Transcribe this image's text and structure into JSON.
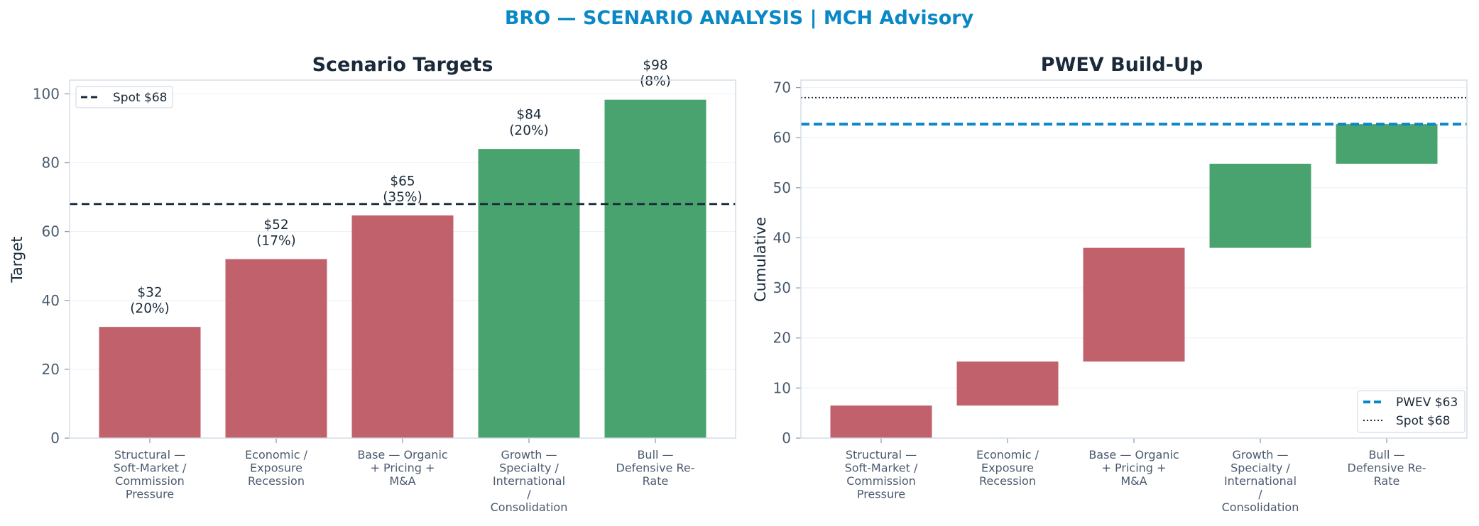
{
  "figure": {
    "title": "BRO — SCENARIO ANALYSIS | MCH Advisory"
  },
  "colors": {
    "bear": "#c0616b",
    "bull": "#49a36e",
    "spot_line": "#1a2a3a",
    "pwev_line": "#0a88c6",
    "title": "#0a88c6"
  },
  "chart_data": [
    {
      "type": "bar",
      "title": "Scenario Targets",
      "xlabel": "",
      "ylabel": "Target",
      "ylim": [
        0,
        104
      ],
      "yticks": [
        0,
        20,
        40,
        60,
        80,
        100
      ],
      "categories": [
        "Structural — Soft-Market / Commission Pressure",
        "Economic / Exposure Recession",
        "Base — Organic + Pricing + M&A",
        "Growth — Specialty / International / Consolidation",
        "Bull — Defensive Re-Rate"
      ],
      "category_lines": [
        [
          "Structural —",
          "Soft-Market /",
          "Commission",
          "Pressure"
        ],
        [
          "Economic /",
          "Exposure",
          "Recession"
        ],
        [
          "Base — Organic",
          "+ Pricing +",
          "M&A"
        ],
        [
          "Growth —",
          "Specialty /",
          "International",
          "/",
          "Consolidation"
        ],
        [
          "Bull —",
          "Defensive Re-",
          "Rate"
        ]
      ],
      "values": [
        32.3,
        52,
        64.7,
        84,
        98.3
      ],
      "bar_colors": [
        "bear",
        "bear",
        "bear",
        "bull",
        "bull"
      ],
      "data_labels": [
        [
          "$32",
          "(20%)"
        ],
        [
          "$52",
          "(17%)"
        ],
        [
          "$65",
          "(35%)"
        ],
        [
          "$84",
          "(20%)"
        ],
        [
          "$98",
          "(8%)"
        ]
      ],
      "reference_lines": [
        {
          "name": "Spot $68",
          "value": 68,
          "style": "dashed",
          "color": "spot_line"
        }
      ],
      "legend": {
        "position": "top-left",
        "entries": [
          "Spot $68"
        ]
      },
      "grid": true
    },
    {
      "type": "bar",
      "subtype": "waterfall",
      "title": "PWEV Build-Up",
      "xlabel": "",
      "ylabel": "Cumulative",
      "ylim": [
        0,
        71.5
      ],
      "yticks": [
        0,
        10,
        20,
        30,
        40,
        50,
        60,
        70
      ],
      "categories": [
        "Structural — Soft-Market / Commission Pressure",
        "Economic / Exposure Recession",
        "Base — Organic + Pricing + M&A",
        "Growth — Specialty / International / Consolidation",
        "Bull — Defensive Re-Rate"
      ],
      "category_lines": [
        [
          "Structural —",
          "Soft-Market /",
          "Commission",
          "Pressure"
        ],
        [
          "Economic /",
          "Exposure",
          "Recession"
        ],
        [
          "Base — Organic",
          "+ Pricing +",
          "M&A"
        ],
        [
          "Growth —",
          "Specialty /",
          "International",
          "/",
          "Consolidation"
        ],
        [
          "Bull —",
          "Defensive Re-",
          "Rate"
        ]
      ],
      "bars": [
        {
          "start": 0,
          "end": 6.5
        },
        {
          "start": 6.5,
          "end": 15.3
        },
        {
          "start": 15.3,
          "end": 38
        },
        {
          "start": 38,
          "end": 54.8
        },
        {
          "start": 54.8,
          "end": 62.7
        }
      ],
      "bar_colors": [
        "bear",
        "bear",
        "bear",
        "bull",
        "bull"
      ],
      "reference_lines": [
        {
          "name": "PWEV $63",
          "value": 62.7,
          "style": "dashed",
          "color": "pwev_line"
        },
        {
          "name": "Spot $68",
          "value": 68,
          "style": "dotted",
          "color": "spot_line"
        }
      ],
      "legend": {
        "position": "bottom-right",
        "entries": [
          "PWEV $63",
          "Spot $68"
        ]
      },
      "grid": true
    }
  ]
}
